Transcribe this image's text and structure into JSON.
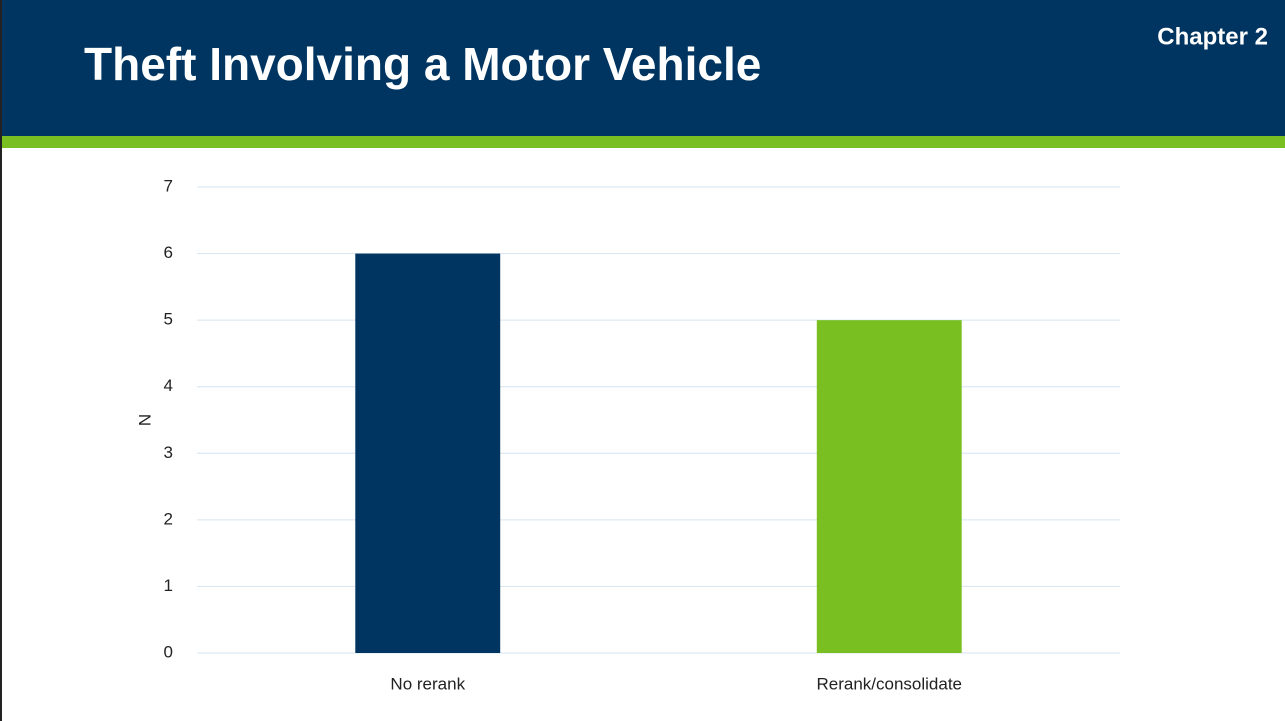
{
  "header": {
    "title": "Theft Involving a Motor Vehicle",
    "chapter": "Chapter 2"
  },
  "chart_data": {
    "type": "bar",
    "ylabel": "N",
    "categories": [
      "No rerank",
      "Rerank/consolidate"
    ],
    "values": [
      6,
      5
    ],
    "colors": [
      "#003561",
      "#7abf22"
    ],
    "ylim": [
      0,
      7
    ],
    "yticks": [
      0,
      1,
      2,
      3,
      4,
      5,
      6,
      7
    ],
    "grid": true
  }
}
